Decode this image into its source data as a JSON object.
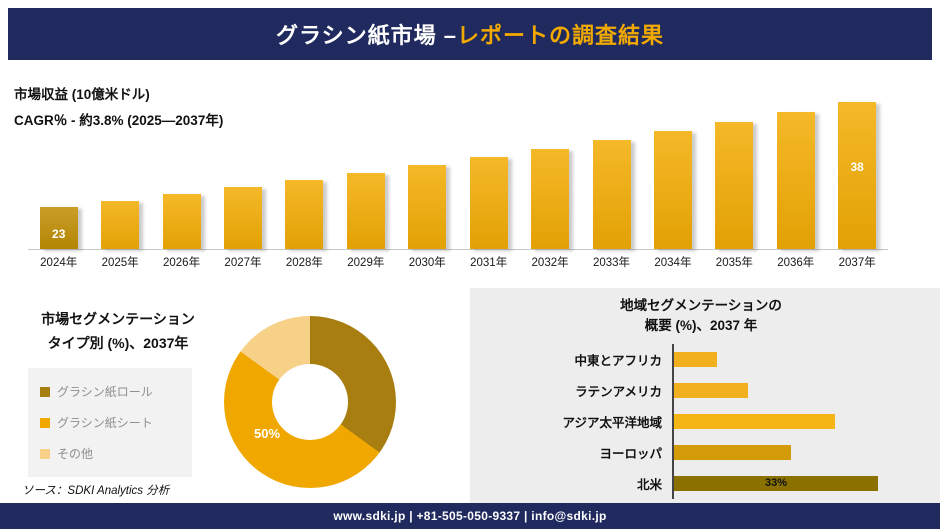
{
  "header": {
    "title_main": "グラシン紙市場 –",
    "title_accent": "レポートの調査結果"
  },
  "revenue": {
    "metric_label": "市場収益 (10億米ドル)",
    "cagr_label": "CAGR％ - 約3.8% (2025―2037年)"
  },
  "segmentation": {
    "title_line1": "市場セグメンテーション",
    "title_line2": "タイプ別 (%)、2037年",
    "source": "ソース：SDKI Analytics 分析"
  },
  "regional": {
    "title_line1": "地域セグメンテーションの",
    "title_line2": "概要 (%)、2037 年"
  },
  "footer": {
    "contact": "www.sdki.jp | +81-505-050-9337 | info@sdki.jp"
  },
  "colors": {
    "navy": "#202a5e",
    "accent_gold": "#f2a900"
  },
  "chart_data": [
    {
      "type": "bar",
      "title": "市場収益 (10億米ドル)",
      "subtitle": "CAGR％ - 約3.8% (2025―2037年)",
      "categories": [
        "2024年",
        "2025年",
        "2026年",
        "2027年",
        "2028年",
        "2029年",
        "2030年",
        "2031年",
        "2032年",
        "2033年",
        "2034年",
        "2035年",
        "2036年",
        "2037年"
      ],
      "values": [
        23,
        23.9,
        24.8,
        25.8,
        26.8,
        27.9,
        29.0,
        30.1,
        31.3,
        32.5,
        33.8,
        35.1,
        36.5,
        38
      ],
      "bar_value_labels": [
        {
          "index": 0,
          "text": "23",
          "anchor": "bottom",
          "offset": 8
        },
        {
          "index": 13,
          "text": "38",
          "anchor": "top",
          "offset": 58
        }
      ],
      "ylabel": "10億米ドル",
      "grid": false,
      "bar_color": "#f3ad05",
      "first_bar_color": "#c18f05"
    },
    {
      "type": "donut",
      "title": "市場セグメンテーション タイプ別 (%)、2037年",
      "segments": [
        {
          "label": "グラシン紙ロール",
          "value": 35,
          "color": "#a87e10"
        },
        {
          "label": "グラシン紙シート",
          "value": 50,
          "color": "#f0a800"
        },
        {
          "label": "その他",
          "value": 15,
          "color": "#f8d189"
        }
      ],
      "highlight_label": "50%",
      "legend_position": "left"
    },
    {
      "type": "bar-horizontal",
      "title": "地域セグメンテーションの概要 (%)、2037 年",
      "categories": [
        "中東とアフリカ",
        "ラテンアメリカ",
        "アジア太平洋地域",
        "ヨーロッパ",
        "北米"
      ],
      "values": [
        7,
        12,
        26,
        19,
        33
      ],
      "colors": [
        "#f2b01e",
        "#f2b01e",
        "#f5b514",
        "#d29b07",
        "#8b7100"
      ],
      "value_labels": [
        {
          "index": 4,
          "text": "33%"
        }
      ],
      "xmax": 33
    }
  ]
}
